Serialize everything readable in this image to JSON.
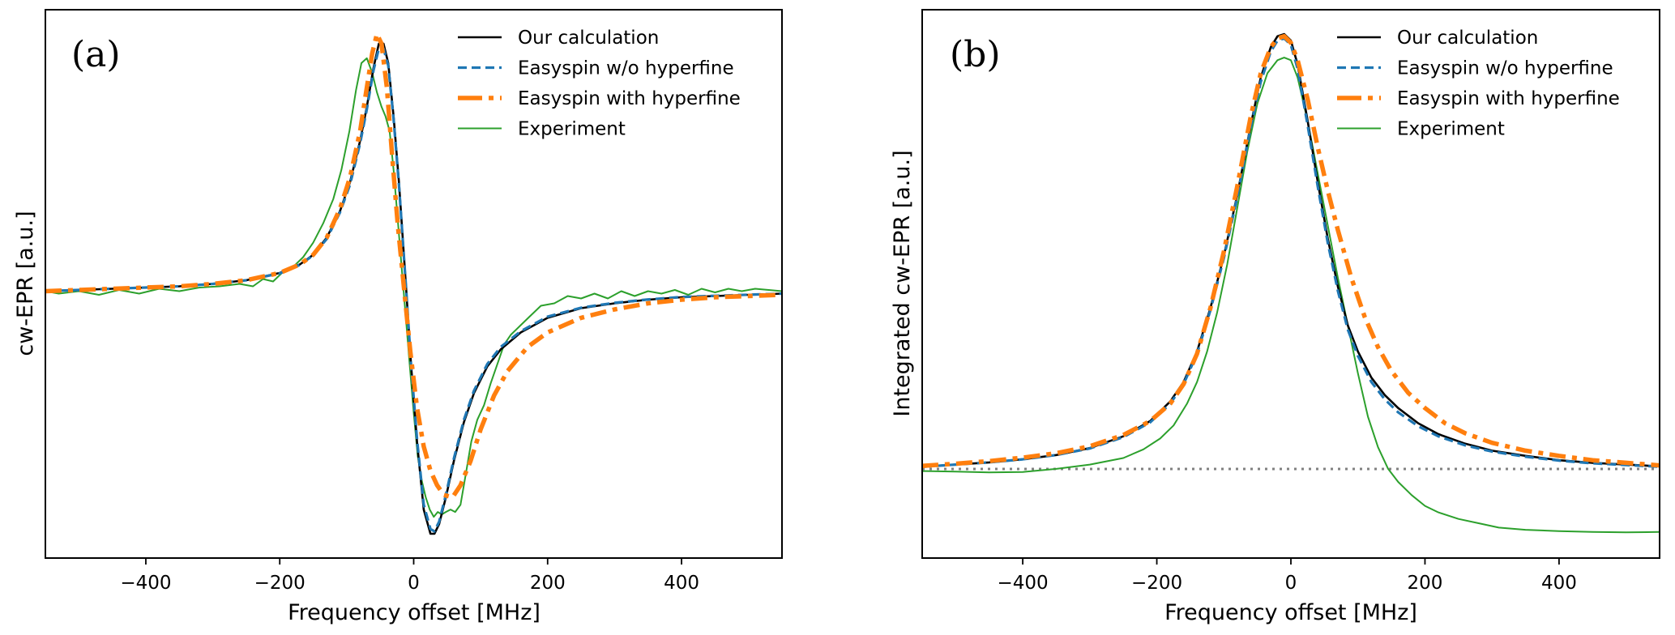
{
  "chart_data": [
    {
      "type": "line",
      "panel_label": "(a)",
      "xlabel": "Frequency offset  [MHz]",
      "ylabel": "cw-EPR  [a.u.]",
      "xlim": [
        -550,
        550
      ],
      "ylim": [
        -1.1,
        1.16
      ],
      "xticks": [
        -400,
        -200,
        0,
        200,
        400
      ],
      "xtick_labels": [
        "−400",
        "−200",
        "0",
        "200",
        "400"
      ],
      "yticks": [],
      "grid": false,
      "legend": {
        "position": "top-right"
      },
      "series": [
        {
          "name": "Our calculation",
          "color": "#000000",
          "style": "solid",
          "x": [
            -550,
            -450,
            -400,
            -350,
            -300,
            -250,
            -200,
            -170,
            -150,
            -130,
            -110,
            -95,
            -80,
            -70,
            -60,
            -52,
            -45,
            -38,
            -30,
            -22,
            -11,
            -4,
            5,
            15,
            25,
            31,
            38,
            48,
            60,
            75,
            90,
            110,
            130,
            160,
            200,
            250,
            300,
            350,
            400,
            450,
            550
          ],
          "y": [
            0.0,
            0.01,
            0.015,
            0.02,
            0.03,
            0.045,
            0.075,
            0.11,
            0.15,
            0.22,
            0.33,
            0.45,
            0.62,
            0.76,
            0.92,
            1.02,
            1.02,
            0.94,
            0.72,
            0.45,
            0.0,
            -0.3,
            -0.62,
            -0.9,
            -1.0,
            -1.0,
            -0.96,
            -0.85,
            -0.7,
            -0.54,
            -0.42,
            -0.31,
            -0.24,
            -0.17,
            -0.11,
            -0.07,
            -0.05,
            -0.035,
            -0.025,
            -0.02,
            -0.01
          ]
        },
        {
          "name": "Easyspin w/o hyperfine",
          "color": "#1f77b4",
          "style": "dashed",
          "x": [
            -550,
            -450,
            -400,
            -350,
            -300,
            -250,
            -200,
            -170,
            -150,
            -130,
            -110,
            -95,
            -80,
            -70,
            -60,
            -52,
            -45,
            -38,
            -30,
            -22,
            -11,
            -4,
            5,
            15,
            25,
            31,
            38,
            48,
            60,
            75,
            90,
            110,
            130,
            160,
            200,
            250,
            300,
            350,
            400,
            450,
            550
          ],
          "y": [
            0.0,
            0.01,
            0.015,
            0.02,
            0.03,
            0.045,
            0.073,
            0.108,
            0.148,
            0.215,
            0.325,
            0.44,
            0.61,
            0.75,
            0.91,
            1.0,
            1.0,
            0.93,
            0.71,
            0.44,
            0.0,
            -0.3,
            -0.61,
            -0.88,
            -0.98,
            -0.99,
            -0.95,
            -0.84,
            -0.69,
            -0.53,
            -0.41,
            -0.3,
            -0.23,
            -0.165,
            -0.105,
            -0.068,
            -0.048,
            -0.034,
            -0.024,
            -0.019,
            -0.01
          ]
        },
        {
          "name": "Easyspin with hyperfine",
          "color": "#ff7f0e",
          "style": "dashdot",
          "x": [
            -550,
            -450,
            -400,
            -350,
            -300,
            -250,
            -200,
            -170,
            -150,
            -130,
            -110,
            -95,
            -80,
            -70,
            -62,
            -55,
            -48,
            -40,
            -32,
            -24,
            -14,
            -5,
            5,
            15,
            25,
            35,
            45,
            58,
            70,
            85,
            100,
            120,
            140,
            170,
            200,
            250,
            300,
            350,
            400,
            450,
            550
          ],
          "y": [
            0.0,
            0.01,
            0.015,
            0.02,
            0.03,
            0.045,
            0.075,
            0.11,
            0.15,
            0.22,
            0.34,
            0.47,
            0.66,
            0.84,
            0.98,
            1.06,
            1.02,
            0.84,
            0.55,
            0.28,
            0.0,
            -0.25,
            -0.48,
            -0.64,
            -0.74,
            -0.8,
            -0.84,
            -0.85,
            -0.8,
            -0.7,
            -0.57,
            -0.43,
            -0.33,
            -0.23,
            -0.17,
            -0.11,
            -0.075,
            -0.05,
            -0.035,
            -0.025,
            -0.015
          ]
        },
        {
          "name": "Experiment",
          "color": "#2ca02c",
          "style": "solid",
          "x": [
            -550,
            -530,
            -500,
            -470,
            -440,
            -410,
            -380,
            -350,
            -320,
            -290,
            -260,
            -240,
            -225,
            -210,
            -195,
            -180,
            -165,
            -150,
            -135,
            -120,
            -108,
            -96,
            -86,
            -78,
            -70,
            -62,
            -55,
            -48,
            -42,
            -36,
            -30,
            -24,
            -18,
            -12,
            -6,
            0,
            6,
            12,
            18,
            24,
            30,
            36,
            42,
            48,
            55,
            62,
            70,
            78,
            86,
            95,
            105,
            115,
            125,
            135,
            145,
            160,
            175,
            190,
            210,
            230,
            250,
            270,
            290,
            310,
            330,
            350,
            370,
            390,
            410,
            430,
            450,
            470,
            490,
            510,
            530,
            550
          ],
          "y": [
            0.0,
            -0.01,
            0.0,
            -0.015,
            0.005,
            -0.01,
            0.01,
            0.0,
            0.015,
            0.02,
            0.03,
            0.02,
            0.05,
            0.04,
            0.08,
            0.1,
            0.14,
            0.2,
            0.28,
            0.38,
            0.5,
            0.66,
            0.83,
            0.94,
            0.96,
            0.9,
            0.82,
            0.76,
            0.72,
            0.66,
            0.5,
            0.3,
            0.1,
            -0.1,
            -0.3,
            -0.5,
            -0.68,
            -0.78,
            -0.85,
            -0.9,
            -0.93,
            -0.91,
            -0.92,
            -0.91,
            -0.9,
            -0.91,
            -0.88,
            -0.75,
            -0.62,
            -0.53,
            -0.47,
            -0.38,
            -0.3,
            -0.22,
            -0.18,
            -0.14,
            -0.1,
            -0.06,
            -0.05,
            -0.02,
            -0.03,
            -0.01,
            -0.03,
            -0.0,
            -0.02,
            0.0,
            -0.01,
            0.005,
            -0.015,
            0.01,
            -0.005,
            0.01,
            0.0,
            0.01,
            0.005,
            0.0
          ]
        }
      ]
    },
    {
      "type": "line",
      "panel_label": "(b)",
      "xlabel": "Frequency offset  [MHz]",
      "ylabel": "Integrated cw-EPR  [a.u.]",
      "xlim": [
        -550,
        550
      ],
      "ylim": [
        -0.205,
        1.056
      ],
      "xticks": [
        -400,
        -200,
        0,
        200,
        400
      ],
      "xtick_labels": [
        "−400",
        "−200",
        "0",
        "200",
        "400"
      ],
      "yticks": [],
      "grid": false,
      "legend": {
        "position": "top-right"
      },
      "reference_line": {
        "y": 0,
        "color": "#808080",
        "style": "dotted"
      },
      "series": [
        {
          "name": "Our calculation",
          "color": "#000000",
          "style": "solid",
          "x": [
            -550,
            -500,
            -450,
            -400,
            -350,
            -300,
            -250,
            -210,
            -180,
            -160,
            -140,
            -120,
            -100,
            -80,
            -60,
            -45,
            -30,
            -20,
            -10,
            0,
            10,
            25,
            40,
            55,
            70,
            85,
            100,
            120,
            140,
            160,
            190,
            220,
            260,
            300,
            350,
            400,
            450,
            500,
            550
          ],
          "y": [
            0.005,
            0.01,
            0.015,
            0.022,
            0.032,
            0.048,
            0.075,
            0.11,
            0.155,
            0.2,
            0.27,
            0.37,
            0.49,
            0.63,
            0.79,
            0.9,
            0.97,
            0.995,
            1.0,
            0.985,
            0.93,
            0.8,
            0.66,
            0.53,
            0.42,
            0.33,
            0.27,
            0.21,
            0.17,
            0.14,
            0.105,
            0.08,
            0.058,
            0.042,
            0.03,
            0.02,
            0.014,
            0.01,
            0.006
          ]
        },
        {
          "name": "Easyspin w/o hyperfine",
          "color": "#1f77b4",
          "style": "dashed",
          "x": [
            -550,
            -500,
            -450,
            -400,
            -350,
            -300,
            -250,
            -210,
            -180,
            -160,
            -140,
            -120,
            -100,
            -80,
            -60,
            -45,
            -30,
            -20,
            -10,
            0,
            10,
            25,
            40,
            55,
            70,
            85,
            100,
            120,
            140,
            160,
            190,
            220,
            260,
            300,
            350,
            400,
            450,
            500,
            550
          ],
          "y": [
            0.005,
            0.01,
            0.015,
            0.022,
            0.032,
            0.047,
            0.073,
            0.107,
            0.15,
            0.195,
            0.265,
            0.365,
            0.485,
            0.625,
            0.785,
            0.89,
            0.96,
            0.985,
            0.99,
            0.975,
            0.92,
            0.79,
            0.65,
            0.52,
            0.41,
            0.32,
            0.26,
            0.2,
            0.16,
            0.13,
            0.098,
            0.075,
            0.054,
            0.04,
            0.028,
            0.019,
            0.013,
            0.009,
            0.005
          ]
        },
        {
          "name": "Easyspin with hyperfine",
          "color": "#ff7f0e",
          "style": "dashdot",
          "x": [
            -550,
            -500,
            -450,
            -400,
            -350,
            -300,
            -250,
            -210,
            -180,
            -160,
            -140,
            -120,
            -100,
            -80,
            -60,
            -45,
            -30,
            -20,
            -10,
            0,
            10,
            25,
            40,
            55,
            70,
            90,
            110,
            130,
            150,
            175,
            200,
            230,
            260,
            300,
            350,
            400,
            450,
            500,
            550
          ],
          "y": [
            0.007,
            0.012,
            0.018,
            0.026,
            0.036,
            0.052,
            0.078,
            0.11,
            0.15,
            0.195,
            0.265,
            0.37,
            0.5,
            0.65,
            0.81,
            0.91,
            0.97,
            0.99,
            0.995,
            0.98,
            0.94,
            0.85,
            0.74,
            0.64,
            0.55,
            0.44,
            0.35,
            0.28,
            0.225,
            0.175,
            0.14,
            0.105,
            0.082,
            0.06,
            0.042,
            0.03,
            0.02,
            0.014,
            0.008
          ]
        },
        {
          "name": "Experiment",
          "color": "#2ca02c",
          "style": "solid",
          "x": [
            -550,
            -500,
            -450,
            -400,
            -350,
            -300,
            -250,
            -220,
            -195,
            -175,
            -155,
            -140,
            -125,
            -110,
            -95,
            -80,
            -65,
            -50,
            -35,
            -20,
            -10,
            0,
            10,
            25,
            40,
            55,
            70,
            85,
            100,
            115,
            130,
            145,
            160,
            180,
            200,
            220,
            250,
            280,
            310,
            350,
            400,
            450,
            500,
            550
          ],
          "y": [
            -0.005,
            -0.006,
            -0.008,
            -0.007,
            0.0,
            0.01,
            0.025,
            0.045,
            0.07,
            0.1,
            0.15,
            0.2,
            0.27,
            0.36,
            0.47,
            0.6,
            0.73,
            0.84,
            0.91,
            0.94,
            0.946,
            0.94,
            0.9,
            0.8,
            0.68,
            0.56,
            0.44,
            0.33,
            0.22,
            0.12,
            0.05,
            0.0,
            -0.03,
            -0.06,
            -0.085,
            -0.1,
            -0.115,
            -0.125,
            -0.135,
            -0.14,
            -0.143,
            -0.145,
            -0.146,
            -0.145
          ]
        }
      ]
    }
  ]
}
